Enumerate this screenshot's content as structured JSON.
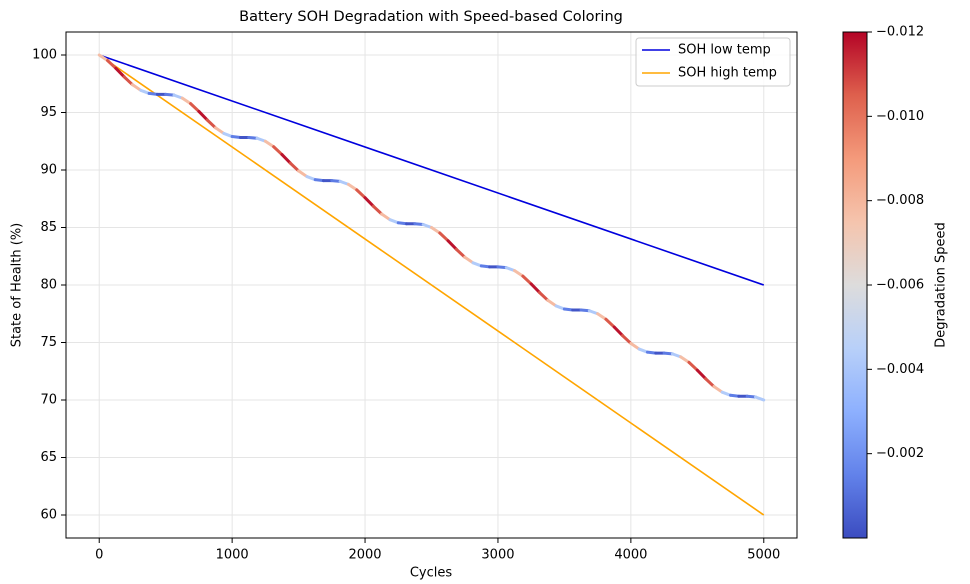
{
  "chart_data": {
    "type": "line",
    "title": "Battery SOH Degradation with Speed-based Coloring",
    "xlabel": "Cycles",
    "ylabel": "State of Health (%)",
    "xlim": [
      -250,
      5250
    ],
    "ylim": [
      58,
      102
    ],
    "xticks": [
      0,
      1000,
      2000,
      3000,
      4000,
      5000
    ],
    "yticks": [
      60,
      65,
      70,
      75,
      80,
      85,
      90,
      95,
      100
    ],
    "grid": true,
    "legend": "upper right",
    "series": [
      {
        "name": "SOH low temp",
        "color": "#0000dd",
        "x": [
          0,
          5000
        ],
        "values": [
          100,
          80
        ]
      },
      {
        "name": "SOH high temp",
        "color": "#ffa500",
        "x": [
          0,
          5000
        ],
        "values": [
          100,
          60
        ]
      }
    ],
    "colored_line": {
      "x": [
        0,
        62.5,
        125,
        187.5,
        250,
        312.5,
        375,
        437.5,
        500,
        562.5,
        625,
        687.5,
        750,
        812.5,
        875,
        937.5,
        1000,
        1062.5,
        1125,
        1187.5,
        1250,
        1312.5,
        1375,
        1437.5,
        1500,
        1562.5,
        1625,
        1687.5,
        1750,
        1812.5,
        1875,
        1937.5,
        2000,
        2062.5,
        2125,
        2187.5,
        2250,
        2312.5,
        2375,
        2437.5,
        2500,
        2562.5,
        2625,
        2687.5,
        2750,
        2812.5,
        2875,
        2937.5,
        3000,
        3062.5,
        3125,
        3187.5,
        3250,
        3312.5,
        3375,
        3437.5,
        3500,
        3562.5,
        3625,
        3687.5,
        3750,
        3812.5,
        3875,
        3937.5,
        4000,
        4062.5,
        4125,
        4187.5,
        4250,
        4312.5,
        4375,
        4437.5,
        4500,
        4562.5,
        4625,
        4687.5,
        4750,
        4812.5,
        4875,
        4937.5,
        5000
      ],
      "values": [
        100.0,
        99.52,
        98.84,
        98.1,
        97.42,
        96.93,
        96.66,
        96.58,
        96.58,
        96.51,
        96.25,
        95.77,
        95.09,
        94.35,
        93.67,
        93.18,
        92.91,
        92.83,
        92.83,
        92.76,
        92.5,
        92.02,
        91.34,
        90.6,
        89.92,
        89.43,
        89.16,
        89.08,
        89.08,
        89.01,
        88.75,
        88.27,
        87.59,
        86.85,
        86.17,
        85.68,
        85.41,
        85.33,
        85.33,
        85.26,
        85.0,
        84.52,
        83.84,
        83.1,
        82.42,
        81.93,
        81.66,
        81.58,
        81.58,
        81.51,
        81.25,
        80.77,
        80.09,
        79.35,
        78.67,
        78.18,
        77.91,
        77.83,
        77.83,
        77.76,
        77.5,
        77.02,
        76.34,
        75.6,
        74.92,
        74.43,
        74.16,
        74.08,
        74.08,
        74.01,
        73.75,
        73.27,
        72.59,
        71.85,
        71.17,
        70.68,
        70.41,
        70.33,
        70.33,
        70.26,
        70.0
      ],
      "speed": [
        -0.0059,
        -0.0095,
        -0.0117,
        -0.0118,
        -0.0096,
        -0.0061,
        -0.0025,
        -0.0003,
        -0.0002,
        -0.0024,
        -0.0059,
        -0.0095,
        -0.0117,
        -0.0118,
        -0.0096,
        -0.0061,
        -0.0025,
        -0.0003,
        -0.0002,
        -0.0024,
        -0.0059,
        -0.0095,
        -0.0117,
        -0.0118,
        -0.0096,
        -0.0061,
        -0.0025,
        -0.0003,
        -0.0002,
        -0.0024,
        -0.0059,
        -0.0095,
        -0.0117,
        -0.0118,
        -0.0096,
        -0.0061,
        -0.0025,
        -0.0003,
        -0.0002,
        -0.0024,
        -0.0059,
        -0.0095,
        -0.0117,
        -0.0118,
        -0.0096,
        -0.0061,
        -0.0025,
        -0.0003,
        -0.0002,
        -0.0024,
        -0.0059,
        -0.0095,
        -0.0117,
        -0.0118,
        -0.0096,
        -0.0061,
        -0.0025,
        -0.0003,
        -0.0002,
        -0.0024,
        -0.0059,
        -0.0095,
        -0.0117,
        -0.0118,
        -0.0096,
        -0.0061,
        -0.0025,
        -0.0003,
        -0.0002,
        -0.0024,
        -0.0059,
        -0.0095,
        -0.0117,
        -0.0118,
        -0.0096,
        -0.0061,
        -0.0025,
        -0.0003,
        -0.0002,
        -0.0024,
        -0.0059
      ]
    },
    "colorbar": {
      "label": "Degradation Speed",
      "cmap": "coolwarm",
      "ylim": [
        0,
        -0.012
      ],
      "yticks": [
        {
          "value": -0.002,
          "label": "−0.002"
        },
        {
          "value": -0.004,
          "label": "−0.004"
        },
        {
          "value": -0.006,
          "label": "−0.006"
        },
        {
          "value": -0.008,
          "label": "−0.008"
        },
        {
          "value": -0.01,
          "label": "−0.010"
        },
        {
          "value": -0.012,
          "label": "−0.012"
        }
      ]
    }
  }
}
